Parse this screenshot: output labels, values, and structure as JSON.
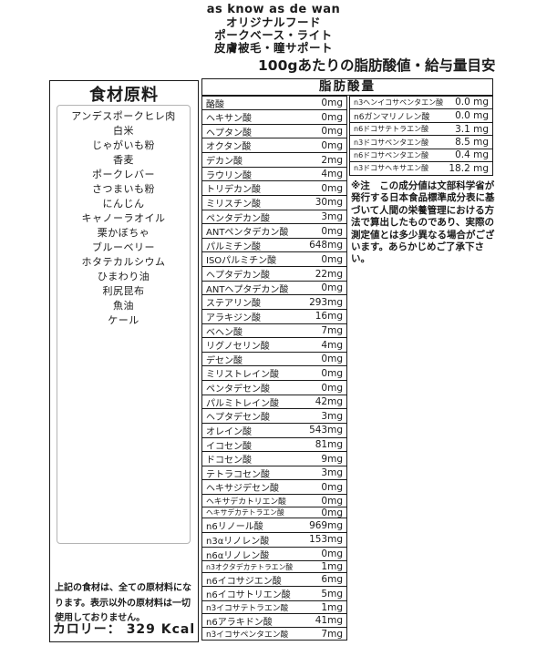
{
  "header": {
    "lines": [
      "as know as de wan",
      "オリジナルフード",
      "ポークベース・ライト",
      "皮膚被毛・瞳サポート"
    ],
    "title": "100gあたりの脂肪酸値・給与量目安"
  },
  "ingredients": {
    "title": "食材原料",
    "items": [
      "アンデスポークヒレ肉",
      "白米",
      "じゃがいも粉",
      "香麦",
      "ポークレバー",
      "さつまいも粉",
      "にんじん",
      "キャノーラオイル",
      "栗かぼちゃ",
      "ブルーベリー",
      "ホタテカルシウム",
      "ひまわり油",
      "利尻昆布",
      "魚油",
      "ケール"
    ],
    "note": "上記の食材は、全ての原材料になります。表示以外の原材料は一切使用しておりません。",
    "calorie_label": "カロリー：",
    "calorie_value": "329 Kcal"
  },
  "fatty_acids": {
    "title": "脂肪酸量",
    "main_rows": [
      {
        "name": "酪酸",
        "value": "0mg"
      },
      {
        "name": "ヘキサン酸",
        "value": "0mg"
      },
      {
        "name": "ヘプタン酸",
        "value": "0mg"
      },
      {
        "name": "オクタン酸",
        "value": "0mg"
      },
      {
        "name": "デカン酸",
        "value": "2mg"
      },
      {
        "name": "ラウリン酸",
        "value": "4mg"
      },
      {
        "name": "トリデカン酸",
        "value": "0mg"
      },
      {
        "name": "ミリスチン酸",
        "value": "30mg"
      },
      {
        "name": "ペンタデカン酸",
        "value": "3mg"
      },
      {
        "name": "ANTペンタデカン酸",
        "value": "0mg"
      },
      {
        "name": "パルミチン酸",
        "value": "648mg"
      },
      {
        "name": "ISOパルミチン酸",
        "value": "0mg"
      },
      {
        "name": "ヘプタデカン酸",
        "value": "22mg"
      },
      {
        "name": "ANTヘプタデカン酸",
        "value": "0mg"
      },
      {
        "name": "ステアリン酸",
        "value": "293mg"
      },
      {
        "name": "アラキジン酸",
        "value": "16mg"
      },
      {
        "name": "ベヘン酸",
        "value": "7mg"
      },
      {
        "name": "リグノセリン酸",
        "value": "4mg"
      },
      {
        "name": "デセン酸",
        "value": "0mg"
      },
      {
        "name": "ミリストレイン酸",
        "value": "0mg"
      },
      {
        "name": "ペンタデセン酸",
        "value": "0mg"
      },
      {
        "name": "パルミトレイン酸",
        "value": "42mg"
      },
      {
        "name": "ヘプタデセン酸",
        "value": "3mg"
      },
      {
        "name": "オレイン酸",
        "value": "543mg"
      },
      {
        "name": "イコセン酸",
        "value": "81mg"
      },
      {
        "name": "ドコセン酸",
        "value": "9mg"
      },
      {
        "name": "テトラコセン酸",
        "value": "3mg"
      },
      {
        "name": "ヘキサジデセン酸",
        "value": "0mg"
      },
      {
        "name": "ヘキサデカトリエン酸",
        "value": "0mg"
      },
      {
        "name": "ヘキサデカテトラエン酸",
        "value": "0mg"
      },
      {
        "name": "n6リノール酸",
        "value": "969mg"
      },
      {
        "name": "n3αリノレン酸",
        "value": "153mg"
      },
      {
        "name": "n6αリノレン酸",
        "value": "0mg"
      },
      {
        "name": "n3オクタデカテトラエン酸",
        "value": "1mg"
      },
      {
        "name": "n6イコサジエン酸",
        "value": "6mg"
      },
      {
        "name": "n6イコサトリエン酸",
        "value": "5mg"
      },
      {
        "name": "n3イコサテトラエン酸",
        "value": "1mg"
      },
      {
        "name": "n6アラキドン酸",
        "value": "41mg"
      },
      {
        "name": "n3イコサペンタエン酸",
        "value": "7mg"
      }
    ],
    "side_rows": [
      {
        "name": "n3ヘンイコサペンタエン酸",
        "value": "0.0 mg"
      },
      {
        "name": "n6ガンマリノレン酸",
        "value": "0.0 mg"
      },
      {
        "name": "n6ドコサテトラエン酸",
        "value": "3.1 mg"
      },
      {
        "name": "n3ドコサペンタエン酸",
        "value": "8.5 mg"
      },
      {
        "name": "n6ドコサペンタエン酸",
        "value": "0.4 mg"
      },
      {
        "name": "n3ドコサヘキサエン酸",
        "value": "18.2 mg"
      }
    ],
    "note": "※注　この成分値は文部科学省が発行する日本食品標準成分表に基づいて人間の栄養管理における方法で算出したものであり、実際の測定値とは多少異なる場合がございます。あらかじめご了承下さい。"
  }
}
